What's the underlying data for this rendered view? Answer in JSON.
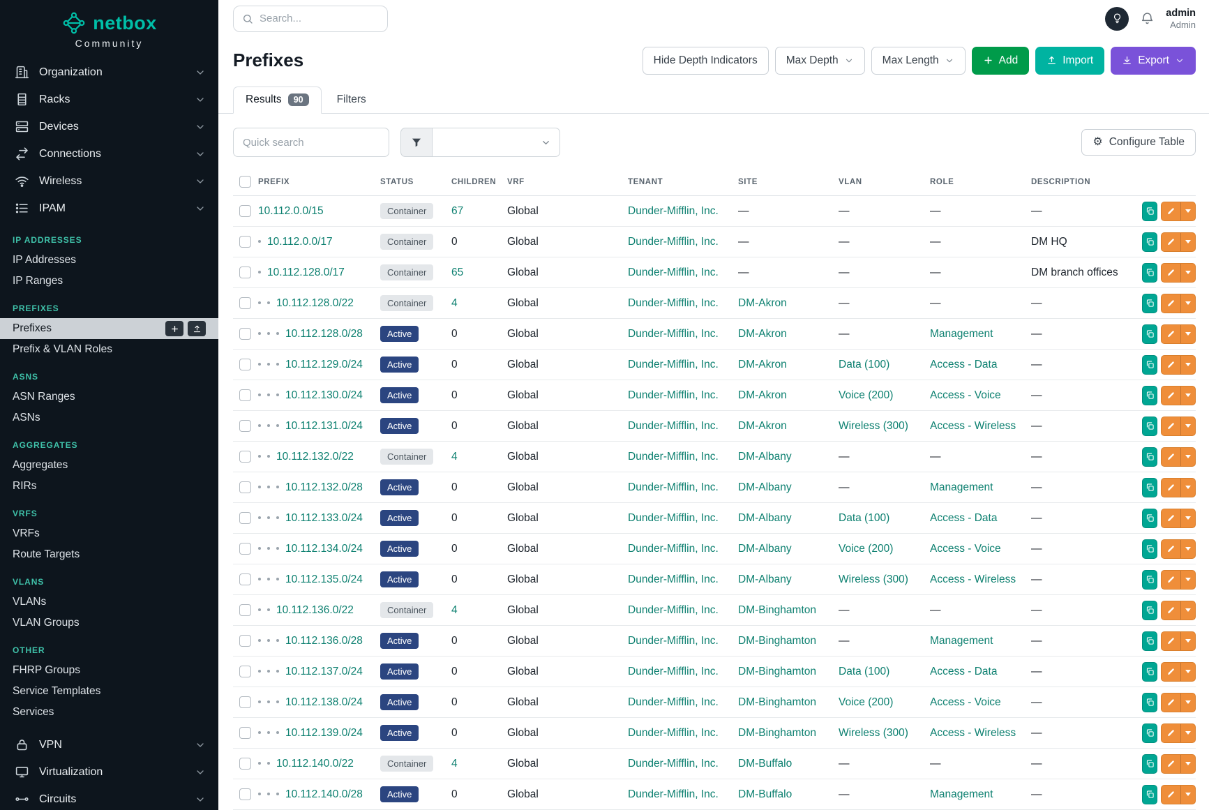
{
  "brand": {
    "name": "netbox",
    "subtitle": "Community"
  },
  "topbar": {
    "search_placeholder": "Search...",
    "user_name": "admin",
    "user_role": "Admin"
  },
  "sidebar": {
    "top": [
      {
        "label": "Organization",
        "icon": "organization-icon"
      },
      {
        "label": "Racks",
        "icon": "rack-icon"
      },
      {
        "label": "Devices",
        "icon": "devices-icon"
      },
      {
        "label": "Connections",
        "icon": "connections-icon"
      },
      {
        "label": "Wireless",
        "icon": "wireless-icon"
      },
      {
        "label": "IPAM",
        "icon": "ipam-icon",
        "expanded": true
      }
    ],
    "ipam_sections": [
      {
        "header": "IP ADDRESSES",
        "items": [
          {
            "label": "IP Addresses"
          },
          {
            "label": "IP Ranges"
          }
        ]
      },
      {
        "header": "PREFIXES",
        "items": [
          {
            "label": "Prefixes",
            "active": true
          },
          {
            "label": "Prefix & VLAN Roles"
          }
        ]
      },
      {
        "header": "ASNS",
        "items": [
          {
            "label": "ASN Ranges"
          },
          {
            "label": "ASNs"
          }
        ]
      },
      {
        "header": "AGGREGATES",
        "items": [
          {
            "label": "Aggregates"
          },
          {
            "label": "RIRs"
          }
        ]
      },
      {
        "header": "VRFS",
        "items": [
          {
            "label": "VRFs"
          },
          {
            "label": "Route Targets"
          }
        ]
      },
      {
        "header": "VLANS",
        "items": [
          {
            "label": "VLANs"
          },
          {
            "label": "VLAN Groups"
          }
        ]
      },
      {
        "header": "OTHER",
        "items": [
          {
            "label": "FHRP Groups"
          },
          {
            "label": "Service Templates"
          },
          {
            "label": "Services"
          }
        ]
      }
    ],
    "bottom": [
      {
        "label": "VPN",
        "icon": "vpn-icon"
      },
      {
        "label": "Virtualization",
        "icon": "virtualization-icon"
      },
      {
        "label": "Circuits",
        "icon": "circuits-icon"
      }
    ]
  },
  "page": {
    "title": "Prefixes",
    "buttons": {
      "hide_depth": "Hide Depth Indicators",
      "max_depth": "Max Depth",
      "max_length": "Max Length",
      "add": "Add",
      "import": "Import",
      "export": "Export"
    },
    "tabs": [
      {
        "label": "Results",
        "badge": "90"
      },
      {
        "label": "Filters"
      }
    ],
    "quick_search_placeholder": "Quick search",
    "configure_table": "Configure Table"
  },
  "table": {
    "columns": [
      "PREFIX",
      "STATUS",
      "CHILDREN",
      "VRF",
      "TENANT",
      "SITE",
      "VLAN",
      "ROLE",
      "DESCRIPTION"
    ],
    "rows": [
      {
        "prefix": "10.112.0.0/15",
        "depth": 0,
        "status": "Container",
        "children": "67",
        "vrf": "Global",
        "tenant": "Dunder-Mifflin, Inc.",
        "site": "—",
        "vlan": "—",
        "role": "—",
        "description": "—"
      },
      {
        "prefix": "10.112.0.0/17",
        "depth": 1,
        "status": "Container",
        "children": "0",
        "vrf": "Global",
        "tenant": "Dunder-Mifflin, Inc.",
        "site": "—",
        "vlan": "—",
        "role": "—",
        "description": "DM HQ"
      },
      {
        "prefix": "10.112.128.0/17",
        "depth": 1,
        "status": "Container",
        "children": "65",
        "vrf": "Global",
        "tenant": "Dunder-Mifflin, Inc.",
        "site": "—",
        "vlan": "—",
        "role": "—",
        "description": "DM branch offices"
      },
      {
        "prefix": "10.112.128.0/22",
        "depth": 2,
        "status": "Container",
        "children": "4",
        "vrf": "Global",
        "tenant": "Dunder-Mifflin, Inc.",
        "site": "DM-Akron",
        "vlan": "—",
        "role": "—",
        "description": "—"
      },
      {
        "prefix": "10.112.128.0/28",
        "depth": 3,
        "status": "Active",
        "children": "0",
        "vrf": "Global",
        "tenant": "Dunder-Mifflin, Inc.",
        "site": "DM-Akron",
        "vlan": "—",
        "role": "Management",
        "description": "—"
      },
      {
        "prefix": "10.112.129.0/24",
        "depth": 3,
        "status": "Active",
        "children": "0",
        "vrf": "Global",
        "tenant": "Dunder-Mifflin, Inc.",
        "site": "DM-Akron",
        "vlan": "Data (100)",
        "role": "Access - Data",
        "description": "—"
      },
      {
        "prefix": "10.112.130.0/24",
        "depth": 3,
        "status": "Active",
        "children": "0",
        "vrf": "Global",
        "tenant": "Dunder-Mifflin, Inc.",
        "site": "DM-Akron",
        "vlan": "Voice (200)",
        "role": "Access - Voice",
        "description": "—"
      },
      {
        "prefix": "10.112.131.0/24",
        "depth": 3,
        "status": "Active",
        "children": "0",
        "vrf": "Global",
        "tenant": "Dunder-Mifflin, Inc.",
        "site": "DM-Akron",
        "vlan": "Wireless (300)",
        "role": "Access - Wireless",
        "description": "—"
      },
      {
        "prefix": "10.112.132.0/22",
        "depth": 2,
        "status": "Container",
        "children": "4",
        "vrf": "Global",
        "tenant": "Dunder-Mifflin, Inc.",
        "site": "DM-Albany",
        "vlan": "—",
        "role": "—",
        "description": "—"
      },
      {
        "prefix": "10.112.132.0/28",
        "depth": 3,
        "status": "Active",
        "children": "0",
        "vrf": "Global",
        "tenant": "Dunder-Mifflin, Inc.",
        "site": "DM-Albany",
        "vlan": "—",
        "role": "Management",
        "description": "—"
      },
      {
        "prefix": "10.112.133.0/24",
        "depth": 3,
        "status": "Active",
        "children": "0",
        "vrf": "Global",
        "tenant": "Dunder-Mifflin, Inc.",
        "site": "DM-Albany",
        "vlan": "Data (100)",
        "role": "Access - Data",
        "description": "—"
      },
      {
        "prefix": "10.112.134.0/24",
        "depth": 3,
        "status": "Active",
        "children": "0",
        "vrf": "Global",
        "tenant": "Dunder-Mifflin, Inc.",
        "site": "DM-Albany",
        "vlan": "Voice (200)",
        "role": "Access - Voice",
        "description": "—"
      },
      {
        "prefix": "10.112.135.0/24",
        "depth": 3,
        "status": "Active",
        "children": "0",
        "vrf": "Global",
        "tenant": "Dunder-Mifflin, Inc.",
        "site": "DM-Albany",
        "vlan": "Wireless (300)",
        "role": "Access - Wireless",
        "description": "—"
      },
      {
        "prefix": "10.112.136.0/22",
        "depth": 2,
        "status": "Container",
        "children": "4",
        "vrf": "Global",
        "tenant": "Dunder-Mifflin, Inc.",
        "site": "DM-Binghamton",
        "vlan": "—",
        "role": "—",
        "description": "—"
      },
      {
        "prefix": "10.112.136.0/28",
        "depth": 3,
        "status": "Active",
        "children": "0",
        "vrf": "Global",
        "tenant": "Dunder-Mifflin, Inc.",
        "site": "DM-Binghamton",
        "vlan": "—",
        "role": "Management",
        "description": "—"
      },
      {
        "prefix": "10.112.137.0/24",
        "depth": 3,
        "status": "Active",
        "children": "0",
        "vrf": "Global",
        "tenant": "Dunder-Mifflin, Inc.",
        "site": "DM-Binghamton",
        "vlan": "Data (100)",
        "role": "Access - Data",
        "description": "—"
      },
      {
        "prefix": "10.112.138.0/24",
        "depth": 3,
        "status": "Active",
        "children": "0",
        "vrf": "Global",
        "tenant": "Dunder-Mifflin, Inc.",
        "site": "DM-Binghamton",
        "vlan": "Voice (200)",
        "role": "Access - Voice",
        "description": "—"
      },
      {
        "prefix": "10.112.139.0/24",
        "depth": 3,
        "status": "Active",
        "children": "0",
        "vrf": "Global",
        "tenant": "Dunder-Mifflin, Inc.",
        "site": "DM-Binghamton",
        "vlan": "Wireless (300)",
        "role": "Access - Wireless",
        "description": "—"
      },
      {
        "prefix": "10.112.140.0/22",
        "depth": 2,
        "status": "Container",
        "children": "4",
        "vrf": "Global",
        "tenant": "Dunder-Mifflin, Inc.",
        "site": "DM-Buffalo",
        "vlan": "—",
        "role": "—",
        "description": "—"
      },
      {
        "prefix": "10.112.140.0/28",
        "depth": 3,
        "status": "Active",
        "children": "0",
        "vrf": "Global",
        "tenant": "Dunder-Mifflin, Inc.",
        "site": "DM-Buffalo",
        "vlan": "—",
        "role": "Management",
        "description": "—"
      }
    ]
  },
  "colors": {
    "brand_teal": "#00bfa8",
    "link_teal": "#0d8070",
    "add_green": "#009b4a",
    "import_teal": "#00b3a1",
    "export_purple": "#7a52d9",
    "edit_orange": "#ef8e3a",
    "copy_teal": "#00a693",
    "status_active_bg": "#2b4580",
    "status_container_bg": "#e4e7ea",
    "sidebar_bg": "#0d151d",
    "section_header_teal": "#3fc1a9"
  }
}
